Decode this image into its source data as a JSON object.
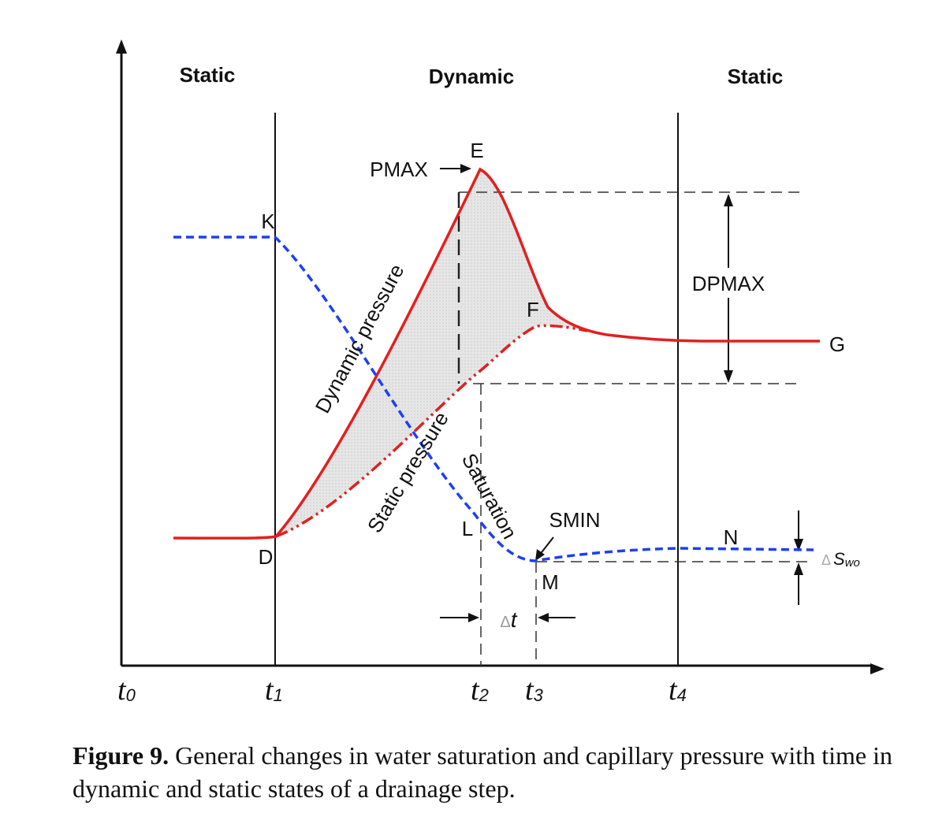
{
  "regions": {
    "left": "Static",
    "middle": "Dynamic",
    "right": "Static"
  },
  "time_ticks": {
    "t0": {
      "base": "t",
      "sub": "0"
    },
    "t1": {
      "base": "t",
      "sub": "1"
    },
    "t2": {
      "base": "t",
      "sub": "2"
    },
    "t3": {
      "base": "t",
      "sub": "3"
    },
    "t4": {
      "base": "t",
      "sub": "4"
    }
  },
  "points": {
    "E": "E",
    "K": "K",
    "F": "F",
    "G": "G",
    "D": "D",
    "L": "L",
    "M": "M",
    "N": "N"
  },
  "annotations": {
    "pmax": "PMAX",
    "dpmax": "DPMAX",
    "smin": "SMIN",
    "delta_t": {
      "delta": "Δ",
      "t": "t"
    },
    "delta_swo": {
      "delta": "Δ",
      "s": "S",
      "sub": "wo"
    }
  },
  "curve_labels": {
    "dynamic": "Dynamic pressure",
    "static": "Static pressure",
    "saturation": "Saturation"
  },
  "colors": {
    "pressure": "#e02020",
    "saturation": "#1e3ff5",
    "shade": "#d9d9d9",
    "axis": "#111111"
  },
  "caption": {
    "label": "Figure 9.",
    "text": " General changes in water saturation and capillary pressure with time in dynamic and static states of a drainage step."
  }
}
